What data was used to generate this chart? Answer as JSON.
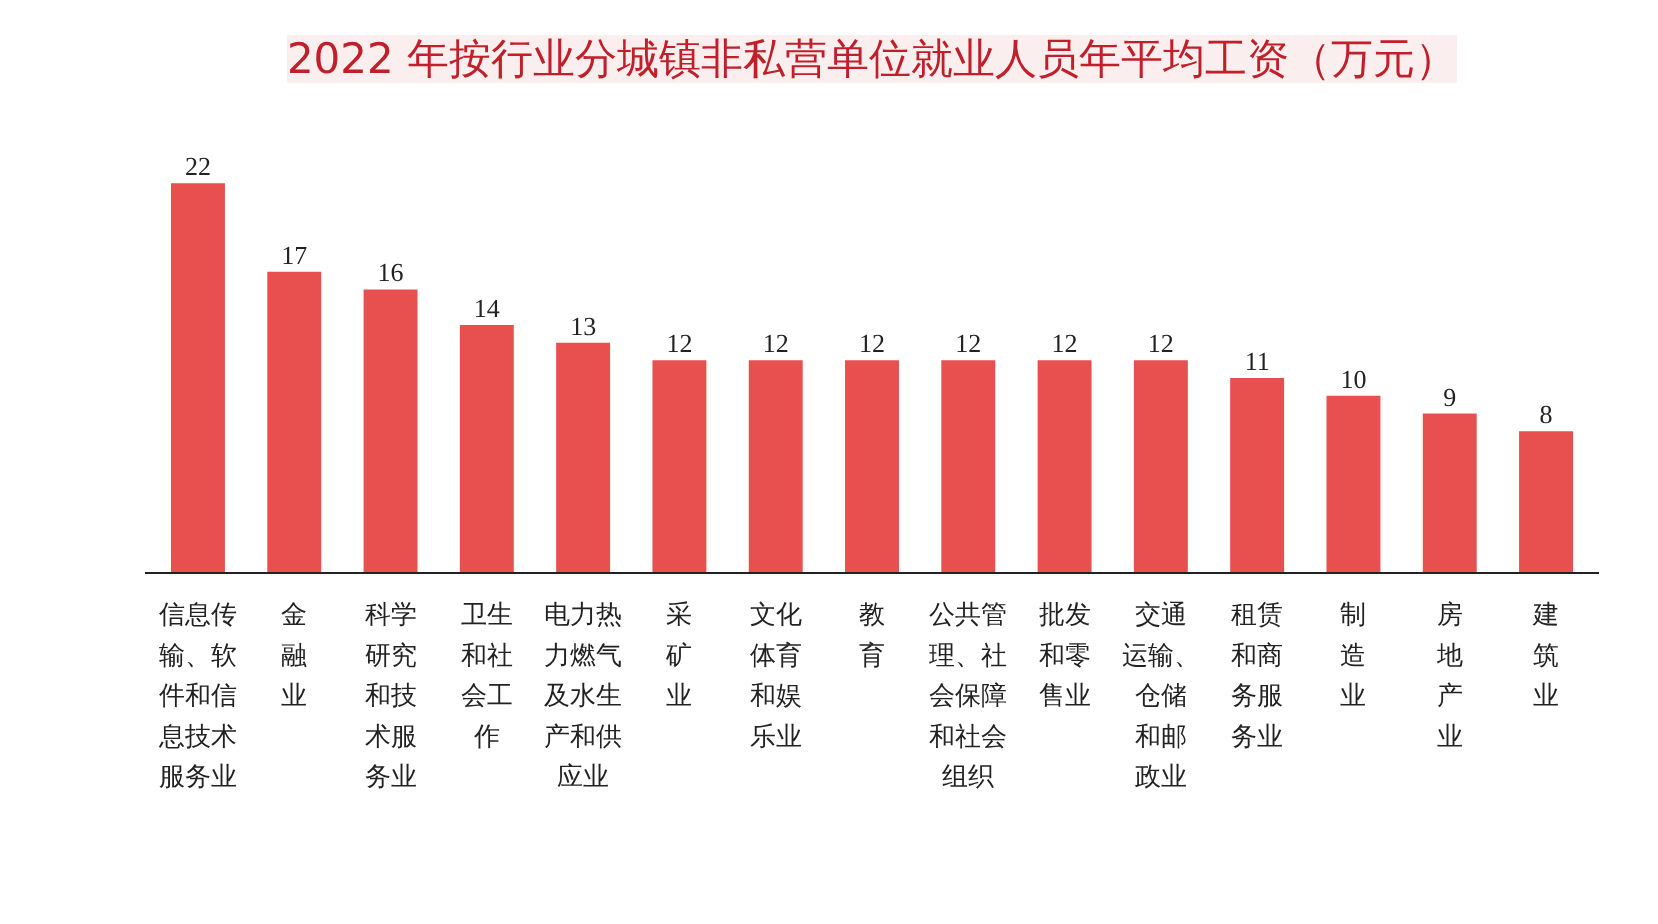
{
  "chart_data": {
    "type": "bar",
    "title": "2022 年按行业分城镇非私营单位就业人员年平均工资（万元）",
    "categories": [
      "信息传输、软件和信息技术服务业",
      "金融业",
      "科学研究和技术服务业",
      "卫生和社会工作",
      "电力热力燃气及水生产和供应业",
      "采矿业",
      "文化体育和娱乐业",
      "教育",
      "公共管理、社会保障和社会组织",
      "批发和零售业",
      "交通运输、仓储和邮政业",
      "租赁和商务服务业",
      "制造业",
      "房地产业",
      "建筑业"
    ],
    "values": [
      22,
      17,
      16,
      14,
      13,
      12,
      12,
      12,
      12,
      12,
      12,
      11,
      10,
      9,
      8
    ],
    "color": "#e8504f",
    "data_labels": true,
    "grid": false
  }
}
